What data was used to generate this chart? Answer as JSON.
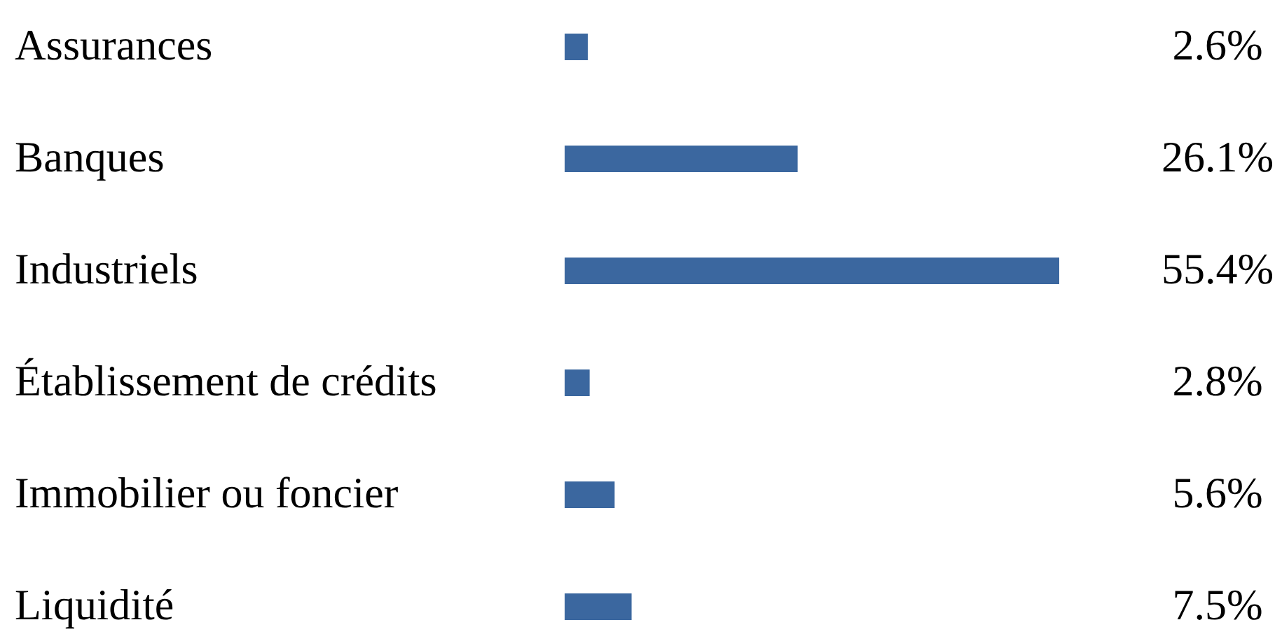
{
  "chart_data": {
    "type": "bar",
    "orientation": "horizontal",
    "tick_labels": "y",
    "categories": [
      "Assurances",
      "Banques",
      "Industriels",
      "Établissement de crédits",
      "Immobilier ou foncier",
      "Liquidité"
    ],
    "values": [
      2.6,
      26.1,
      55.4,
      2.8,
      5.6,
      7.5
    ],
    "value_labels": [
      "2.6%",
      "26.1%",
      "55.4%",
      "2.8%",
      "5.6%",
      "7.5%"
    ],
    "color": "#3b679f"
  }
}
